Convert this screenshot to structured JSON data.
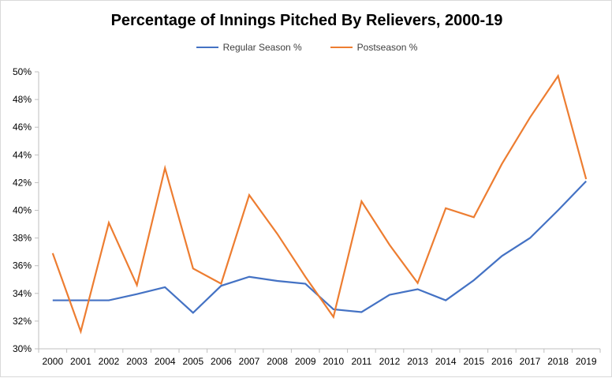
{
  "chart_data": {
    "type": "line",
    "title": "Percentage of Innings Pitched By Relievers, 2000-19",
    "categories": [
      "2000",
      "2001",
      "2002",
      "2003",
      "2004",
      "2005",
      "2006",
      "2007",
      "2008",
      "2009",
      "2010",
      "2011",
      "2012",
      "2013",
      "2014",
      "2015",
      "2016",
      "2017",
      "2018",
      "2019"
    ],
    "series": [
      {
        "name": "Regular Season %",
        "color": "#4472c4",
        "values": [
          33.5,
          33.5,
          33.5,
          33.95,
          34.45,
          32.6,
          34.55,
          35.2,
          34.9,
          34.7,
          32.85,
          32.65,
          33.9,
          34.3,
          33.5,
          34.95,
          36.7,
          38.0,
          40.0,
          42.1
        ]
      },
      {
        "name": "Postseason %",
        "color": "#ed7d31",
        "values": [
          36.9,
          31.25,
          39.1,
          34.6,
          43.05,
          35.8,
          34.7,
          41.1,
          38.3,
          35.2,
          32.3,
          40.65,
          37.5,
          34.75,
          40.15,
          39.5,
          43.35,
          46.7,
          49.7,
          42.25
        ]
      }
    ],
    "ylim": [
      30,
      50
    ],
    "yticks": [
      "30%",
      "32%",
      "34%",
      "36%",
      "38%",
      "40%",
      "42%",
      "44%",
      "46%",
      "48%",
      "50%"
    ],
    "xlabel": "",
    "ylabel": "",
    "grid": false,
    "legend": "top"
  }
}
